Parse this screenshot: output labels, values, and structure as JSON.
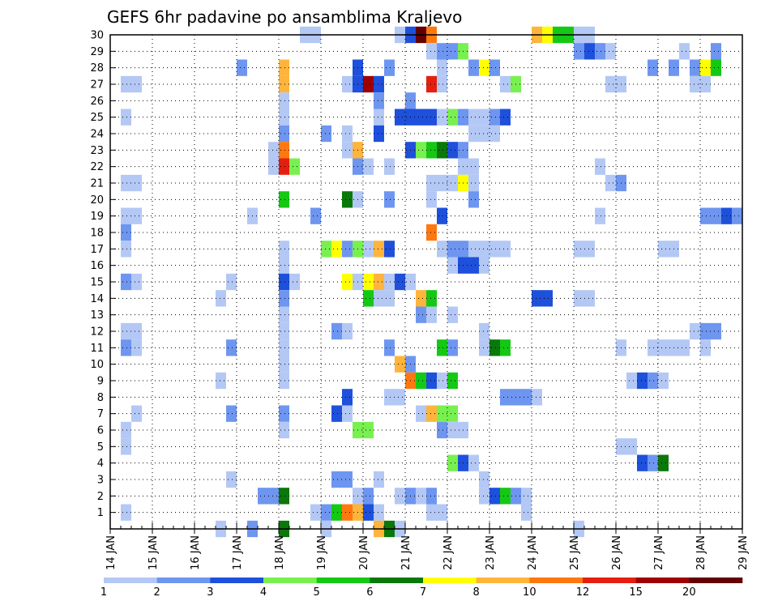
{
  "colors": {
    "scale": [
      "#b4c8f5",
      "#6e96f0",
      "#1e50dc",
      "#78f050",
      "#14c814",
      "#0a780a",
      "#ffff00",
      "#ffb43c",
      "#ff780f",
      "#e61e0f",
      "#a00000",
      "#640000"
    ]
  },
  "chart_data": {
    "type": "heatmap",
    "title": "GEFS 6hr padavine po ansamblima Kraljevo",
    "x_tick_labels": [
      "14 JAN",
      "15 JAN",
      "16 JAN",
      "17 JAN",
      "18 JAN",
      "19 JAN",
      "20 JAN",
      "21 JAN",
      "22 JAN",
      "23 JAN",
      "24 JAN",
      "25 JAN",
      "26 JAN",
      "27 JAN",
      "28 JAN",
      "29 JAN"
    ],
    "y_tick_labels": [
      "1",
      "2",
      "3",
      "4",
      "5",
      "6",
      "7",
      "8",
      "9",
      "10",
      "11",
      "12",
      "13",
      "14",
      "15",
      "16",
      "17",
      "18",
      "19",
      "20",
      "21",
      "22",
      "23",
      "24",
      "25",
      "26",
      "27",
      "28",
      "29",
      "30"
    ],
    "xlim": [
      "2026-01-14 00Z",
      "2026-01-29 00Z"
    ],
    "ylim": [
      0,
      30
    ],
    "grid": true,
    "step_hours": 6,
    "colorbar_labels": [
      "1",
      "2",
      "3",
      "4",
      "5",
      "6",
      "7",
      "8",
      "10",
      "12",
      "15",
      "20"
    ],
    "colorbar_bounds": [
      1,
      2,
      3,
      4,
      5,
      6,
      7,
      8,
      10,
      12,
      15,
      20,
      25
    ],
    "cell_value_unit": "colorbar class index (0 = 1-2 ... 11 = >20)",
    "cells": [
      {
        "member": 30,
        "classes": {
          "18": 0,
          "19": 0,
          "27": 0,
          "28": 2,
          "29": 11,
          "30": 8,
          "40": 7,
          "41": 6,
          "42": 4,
          "43": 4,
          "44": 0,
          "45": 0
        }
      },
      {
        "member": 29,
        "classes": {
          "30": 0,
          "31": 1,
          "32": 1,
          "33": 3,
          "44": 1,
          "45": 2,
          "46": 1,
          "47": 0,
          "54": 0,
          "57": 1
        }
      },
      {
        "member": 28,
        "classes": {
          "12": 1,
          "16": 7,
          "23": 2,
          "26": 1,
          "31": 0,
          "34": 1,
          "35": 6,
          "36": 1,
          "51": 1,
          "53": 1,
          "55": 1,
          "56": 6,
          "57": 4
        }
      },
      {
        "member": 27,
        "classes": {
          "1": 0,
          "2": 0,
          "16": 7,
          "22": 0,
          "23": 2,
          "24": 10,
          "25": 2,
          "30": 9,
          "31": 0,
          "37": 0,
          "38": 3,
          "47": 0,
          "48": 0,
          "55": 0,
          "56": 0
        }
      },
      {
        "member": 26,
        "classes": {
          "16": 0,
          "25": 1,
          "28": 1
        }
      },
      {
        "member": 25,
        "classes": {
          "1": 0,
          "16": 0,
          "25": 0,
          "27": 2,
          "28": 2,
          "29": 2,
          "30": 2,
          "31": 0,
          "32": 3,
          "33": 1,
          "34": 0,
          "35": 0,
          "36": 1,
          "37": 2
        }
      },
      {
        "member": 24,
        "classes": {
          "16": 1,
          "20": 1,
          "22": 0,
          "25": 2,
          "34": 0,
          "35": 0,
          "36": 0
        }
      },
      {
        "member": 23,
        "classes": {
          "15": 0,
          "16": 8,
          "22": 0,
          "23": 7,
          "28": 2,
          "29": 3,
          "30": 4,
          "31": 5,
          "32": 2,
          "33": 1
        }
      },
      {
        "member": 22,
        "classes": {
          "15": 0,
          "16": 9,
          "17": 3,
          "23": 1,
          "24": 0,
          "26": 0,
          "33": 0,
          "34": 0,
          "46": 0
        }
      },
      {
        "member": 21,
        "classes": {
          "1": 0,
          "2": 0,
          "30": 0,
          "31": 0,
          "32": 0,
          "33": 6,
          "34": 0,
          "47": 0,
          "48": 1
        }
      },
      {
        "member": 20,
        "classes": {
          "16": 4,
          "22": 5,
          "23": 0,
          "26": 1,
          "30": 0,
          "34": 1
        }
      },
      {
        "member": 19,
        "classes": {
          "1": 0,
          "2": 0,
          "13": 0,
          "19": 1,
          "31": 2,
          "46": 0,
          "56": 1,
          "57": 1,
          "58": 2,
          "59": 1
        }
      },
      {
        "member": 18,
        "classes": {
          "1": 1,
          "30": 8
        }
      },
      {
        "member": 17,
        "classes": {
          "1": 0,
          "16": 0,
          "20": 3,
          "21": 6,
          "22": 1,
          "23": 3,
          "24": 0,
          "25": 7,
          "26": 2,
          "31": 0,
          "32": 1,
          "33": 1,
          "34": 0,
          "35": 0,
          "36": 0,
          "37": 0,
          "44": 0,
          "45": 0,
          "52": 0,
          "53": 0
        }
      },
      {
        "member": 16,
        "classes": {
          "16": 0,
          "32": 0,
          "33": 2,
          "34": 2,
          "35": 0
        }
      },
      {
        "member": 15,
        "classes": {
          "1": 1,
          "2": 0,
          "11": 0,
          "16": 2,
          "17": 0,
          "22": 6,
          "23": 0,
          "24": 6,
          "25": 7,
          "26": 0,
          "27": 2,
          "28": 0
        }
      },
      {
        "member": 14,
        "classes": {
          "10": 0,
          "16": 1,
          "24": 4,
          "25": 0,
          "26": 0,
          "29": 7,
          "30": 4,
          "40": 2,
          "41": 2,
          "44": 0,
          "45": 0
        }
      },
      {
        "member": 13,
        "classes": {
          "16": 0,
          "29": 1,
          "30": 0,
          "32": 0
        }
      },
      {
        "member": 12,
        "classes": {
          "1": 0,
          "2": 0,
          "16": 0,
          "21": 1,
          "22": 0,
          "35": 0,
          "55": 0,
          "56": 1,
          "57": 1
        }
      },
      {
        "member": 11,
        "classes": {
          "1": 1,
          "2": 0,
          "11": 1,
          "16": 0,
          "26": 1,
          "31": 4,
          "32": 1,
          "35": 0,
          "36": 5,
          "37": 4,
          "48": 0,
          "51": 0,
          "52": 0,
          "53": 0,
          "54": 0,
          "56": 0
        }
      },
      {
        "member": 10,
        "classes": {
          "16": 0,
          "27": 7,
          "28": 1
        }
      },
      {
        "member": 9,
        "classes": {
          "10": 0,
          "16": 0,
          "28": 8,
          "29": 4,
          "30": 2,
          "31": 0,
          "32": 4,
          "49": 0,
          "50": 2,
          "51": 1,
          "52": 0
        }
      },
      {
        "member": 8,
        "classes": {
          "22": 2,
          "26": 0,
          "27": 0,
          "37": 1,
          "38": 1,
          "39": 1,
          "40": 0
        }
      },
      {
        "member": 7,
        "classes": {
          "2": 0,
          "11": 1,
          "16": 1,
          "21": 2,
          "22": 0,
          "29": 0,
          "30": 7,
          "31": 3,
          "32": 3
        }
      },
      {
        "member": 6,
        "classes": {
          "1": 0,
          "16": 0,
          "23": 3,
          "24": 3,
          "31": 1,
          "32": 0,
          "33": 0
        }
      },
      {
        "member": 5,
        "classes": {
          "1": 0,
          "48": 0,
          "49": 0
        }
      },
      {
        "member": 4,
        "classes": {
          "32": 3,
          "33": 2,
          "34": 0,
          "50": 2,
          "51": 1,
          "52": 5
        }
      },
      {
        "member": 3,
        "classes": {
          "11": 0,
          "21": 1,
          "22": 1,
          "25": 0,
          "35": 0
        }
      },
      {
        "member": 2,
        "classes": {
          "14": 1,
          "15": 1,
          "16": 5,
          "23": 0,
          "24": 1,
          "27": 0,
          "28": 1,
          "29": 0,
          "30": 1,
          "35": 0,
          "36": 2,
          "37": 4,
          "38": 1,
          "39": 0
        }
      },
      {
        "member": 1,
        "classes": {
          "1": 0,
          "19": 0,
          "20": 1,
          "21": 4,
          "22": 8,
          "23": 7,
          "24": 2,
          "25": 0,
          "30": 0,
          "31": 0,
          "39": 0
        }
      },
      {
        "member": 0,
        "classes": {
          "10": 0,
          "13": 1,
          "16": 5,
          "20": 0,
          "25": 7,
          "26": 5,
          "27": 0,
          "44": 0
        }
      }
    ]
  }
}
